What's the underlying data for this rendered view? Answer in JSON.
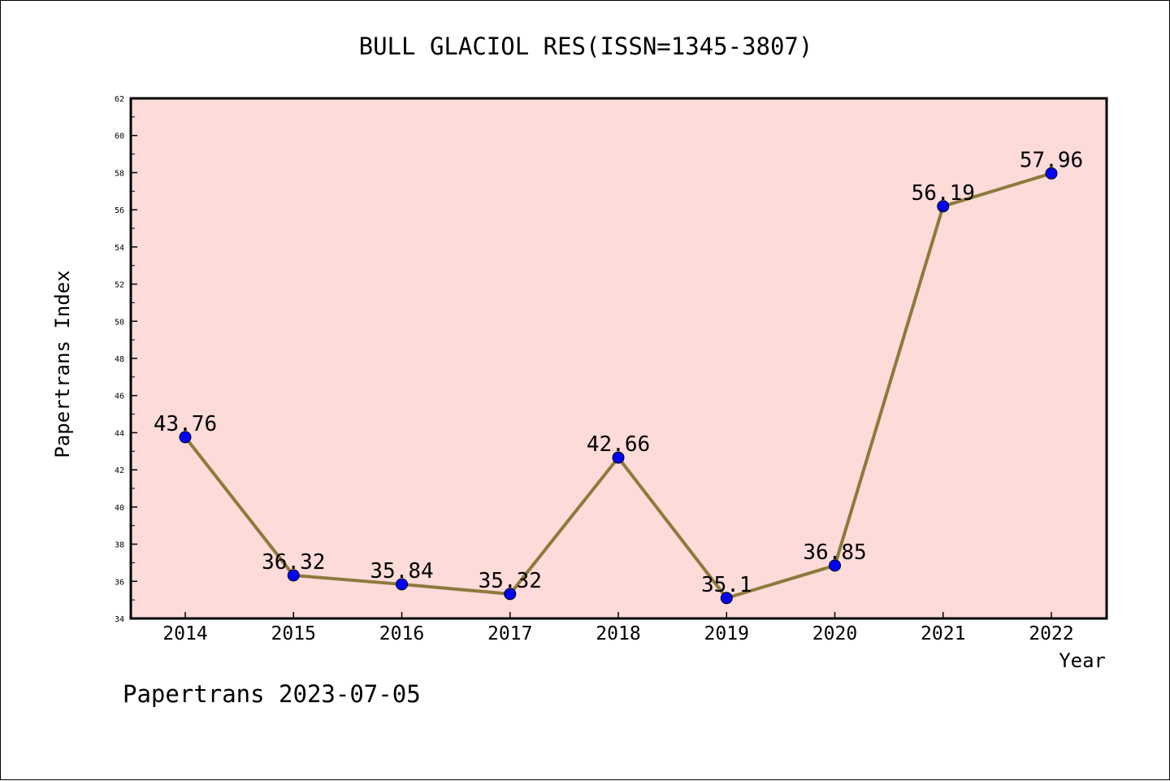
{
  "chart_data": {
    "type": "line",
    "title": "BULL GLACIOL RES(ISSN=1345-3807)",
    "xlabel": "Year",
    "ylabel": "Papertrans Index",
    "categories": [
      "2014",
      "2015",
      "2016",
      "2017",
      "2018",
      "2019",
      "2020",
      "2021",
      "2022"
    ],
    "series": [
      {
        "values": [
          43.76,
          36.32,
          35.84,
          35.32,
          42.66,
          35.1,
          36.85,
          56.19,
          57.96
        ],
        "labels": [
          "43.76",
          "36.32",
          "35.84",
          "35.32",
          "42.66",
          "35.1",
          "36.85",
          "56.19",
          "57.96"
        ]
      }
    ],
    "ylim": [
      34,
      62
    ],
    "y_ticks": [
      "34",
      "36",
      "38",
      "40",
      "42",
      "44",
      "46",
      "48",
      "50",
      "52",
      "54",
      "56",
      "58",
      "60",
      "62"
    ],
    "grid": false,
    "colors": {
      "plot_background": "#fddbd9",
      "line": "#8c7a3c",
      "marker": "#0000ff"
    }
  },
  "footer": {
    "text": "Papertrans 2023-07-05"
  }
}
